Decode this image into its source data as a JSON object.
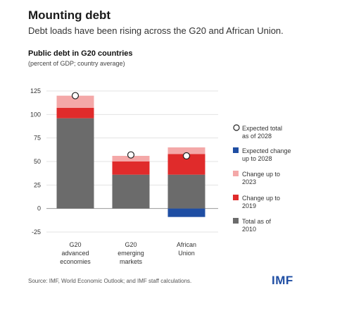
{
  "header": {
    "title": "Mounting debt",
    "subtitle": "Debt loads have been rising across the G20 and African Union."
  },
  "chart_data": {
    "type": "bar",
    "stacked": true,
    "title": "Public debt in G20 countries",
    "subtitle": "(percent of GDP; country average)",
    "categories": [
      [
        "G20",
        "advanced",
        "economies"
      ],
      [
        "G20",
        "emerging",
        "markets"
      ],
      [
        "African",
        "Union"
      ]
    ],
    "ylim": [
      -25,
      125
    ],
    "yticks": [
      -25,
      0,
      25,
      50,
      75,
      100,
      125
    ],
    "grid": true,
    "legend_position": "right",
    "series": [
      {
        "name": "Total as of 2010",
        "color": "#6b6b6b",
        "values": [
          96,
          36,
          36
        ]
      },
      {
        "name": "Change up to 2019",
        "color": "#e02b2b",
        "values": [
          11,
          14,
          22
        ]
      },
      {
        "name": "Change up to 2023",
        "color": "#f4a8a8",
        "values": [
          13,
          6,
          7
        ]
      },
      {
        "name": "Expected change up to 2028",
        "color": "#1f4ea3",
        "values": [
          0,
          0,
          -9
        ]
      }
    ],
    "expected_total_2028": {
      "name": "Expected total as of 2028",
      "values": [
        120,
        57,
        56
      ]
    },
    "legend": [
      {
        "key": "expected",
        "lines": [
          "Expected total",
          "as of 2028"
        ],
        "marker": "circle"
      },
      {
        "key": "s3",
        "lines": [
          "Expected change",
          "up to 2028"
        ],
        "color": "#1f4ea3"
      },
      {
        "key": "s2",
        "lines": [
          "Change up to",
          "2023"
        ],
        "color": "#f4a8a8"
      },
      {
        "key": "s1",
        "lines": [
          "Change up to",
          "2019"
        ],
        "color": "#e02b2b"
      },
      {
        "key": "s0",
        "lines": [
          "Total as of",
          "2010"
        ],
        "color": "#6b6b6b"
      }
    ]
  },
  "footer": {
    "source": "Source: IMF, World Economic Outlook; and IMF staff calculations.",
    "logo": "IMF"
  }
}
